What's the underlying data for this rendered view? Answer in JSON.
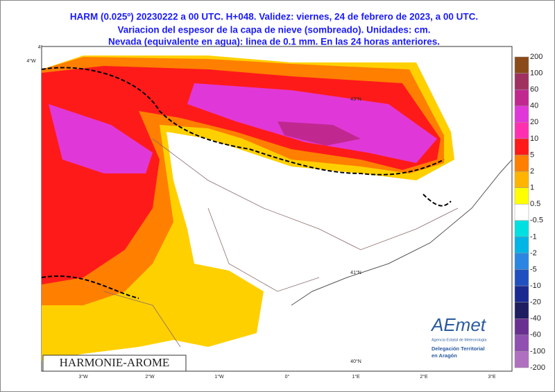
{
  "header": {
    "line1": "HARM (0.025º) 20230222 a 00 UTC.  H+048. Validez: viernes, 24 de febrero de 2023,  a  00 UTC.",
    "line2": "Variacion del espesor de la capa de nieve (sombreado). Unidades: cm.",
    "line3": "Nevada (equivalente en agua): linea de 0.1 mm. En las 24 horas anteriores."
  },
  "map": {
    "model_label": "HARMONIE-AROME",
    "lat_labels": [
      "4°",
      "4°W",
      "43°N",
      "41°N",
      "40°N"
    ],
    "lon_labels": [
      "3°W",
      "2°W",
      "1°W",
      "0°",
      "1°E",
      "2°E",
      "3°E"
    ]
  },
  "legend": {
    "labels": [
      "200",
      "100",
      "60",
      "40",
      "20",
      "10",
      "5",
      "2",
      "1",
      "0.5",
      "-0.5",
      "-1",
      "-2",
      "-5",
      "-10",
      "-20",
      "-40",
      "-60",
      "-100",
      "-200"
    ],
    "colors": [
      "#8b4a1a",
      "#a03060",
      "#c02890",
      "#e038d8",
      "#ff30b0",
      "#ff1a1a",
      "#ff7f00",
      "#ffb400",
      "#ffff00",
      "#ffffff",
      "#00e0e0",
      "#00b4e6",
      "#2a86e0",
      "#2050c0",
      "#1a2a90",
      "#1e1e60",
      "#6a3090",
      "#9050b0",
      "#b070c0"
    ]
  },
  "logo": {
    "brand": "AEmet",
    "agency": "Agencia Estatal de Meteorología",
    "delegation": "Delegación Territorial",
    "region": "en Aragón"
  }
}
